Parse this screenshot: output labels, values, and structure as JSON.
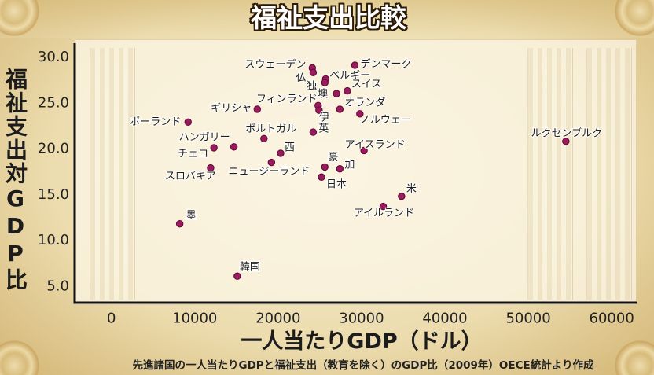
{
  "chart_data": {
    "type": "scatter",
    "title": "福祉支出比較",
    "xlabel": "一人当たりGDP（ドル）",
    "ylabel": "福祉支出対GDP比",
    "note": "先進諸国の一人当たりGDPと福祉支出（教育を除く）のGDP比（2009年）OECE統計より作成",
    "xlim": [
      -4400,
      63000
    ],
    "ylim": [
      3.2,
      31.5
    ],
    "x_ticks": [
      0,
      10000,
      20000,
      30000,
      40000,
      50000,
      60000
    ],
    "x_tick_labels": [
      "0",
      "10000",
      "20000",
      "30000",
      "40000",
      "50000",
      "60000"
    ],
    "y_ticks": [
      5,
      10,
      15,
      20,
      25,
      30
    ],
    "y_tick_labels": [
      "5.0",
      "10.0",
      "15.0",
      "20.0",
      "25.0",
      "30.0"
    ],
    "grid": false,
    "legend": "none",
    "point_color": "#9b1a5e",
    "point_outline_color": "#5a0a35",
    "points": [
      {
        "name": "スウェーデン",
        "x": 24100,
        "y": 28.8
      },
      {
        "name": "仏",
        "x": 24200,
        "y": 28.3
      },
      {
        "name": "ベルギー",
        "x": 25700,
        "y": 27.6
      },
      {
        "name": "独",
        "x": 25600,
        "y": 27.2
      },
      {
        "name": "墺",
        "x": 27000,
        "y": 26.0
      },
      {
        "name": "スイス",
        "x": 28300,
        "y": 26.3
      },
      {
        "name": "デンマーク",
        "x": 29200,
        "y": 29.1
      },
      {
        "name": "フィンランド",
        "x": 24800,
        "y": 24.7
      },
      {
        "name": "伊",
        "x": 24900,
        "y": 24.2
      },
      {
        "name": "オランダ",
        "x": 27400,
        "y": 24.3
      },
      {
        "name": "ノルウェー",
        "x": 29800,
        "y": 23.8
      },
      {
        "name": "英",
        "x": 24200,
        "y": 21.8
      },
      {
        "name": "ギリシャ",
        "x": 17500,
        "y": 24.3
      },
      {
        "name": "ポーランド",
        "x": 9200,
        "y": 22.9
      },
      {
        "name": "ポルトガル",
        "x": 18300,
        "y": 21.1
      },
      {
        "name": "ハンガリー",
        "x": 14700,
        "y": 20.2
      },
      {
        "name": "チェコ",
        "x": 12300,
        "y": 20.1
      },
      {
        "name": "西",
        "x": 20300,
        "y": 19.5
      },
      {
        "name": "ニュージーランド",
        "x": 19200,
        "y": 18.5
      },
      {
        "name": "スロバキア",
        "x": 11900,
        "y": 17.9
      },
      {
        "name": "豪",
        "x": 25600,
        "y": 18.0
      },
      {
        "name": "加",
        "x": 27400,
        "y": 17.8
      },
      {
        "name": "日本",
        "x": 25200,
        "y": 16.9
      },
      {
        "name": "アイスランド",
        "x": 30300,
        "y": 19.8
      },
      {
        "name": "ルクセンブルク",
        "x": 54500,
        "y": 20.8
      },
      {
        "name": "米",
        "x": 34800,
        "y": 14.8
      },
      {
        "name": "アイルランド",
        "x": 32600,
        "y": 13.7
      },
      {
        "name": "墨",
        "x": 8200,
        "y": 11.8
      },
      {
        "name": "韓国",
        "x": 15100,
        "y": 6.1
      }
    ]
  }
}
